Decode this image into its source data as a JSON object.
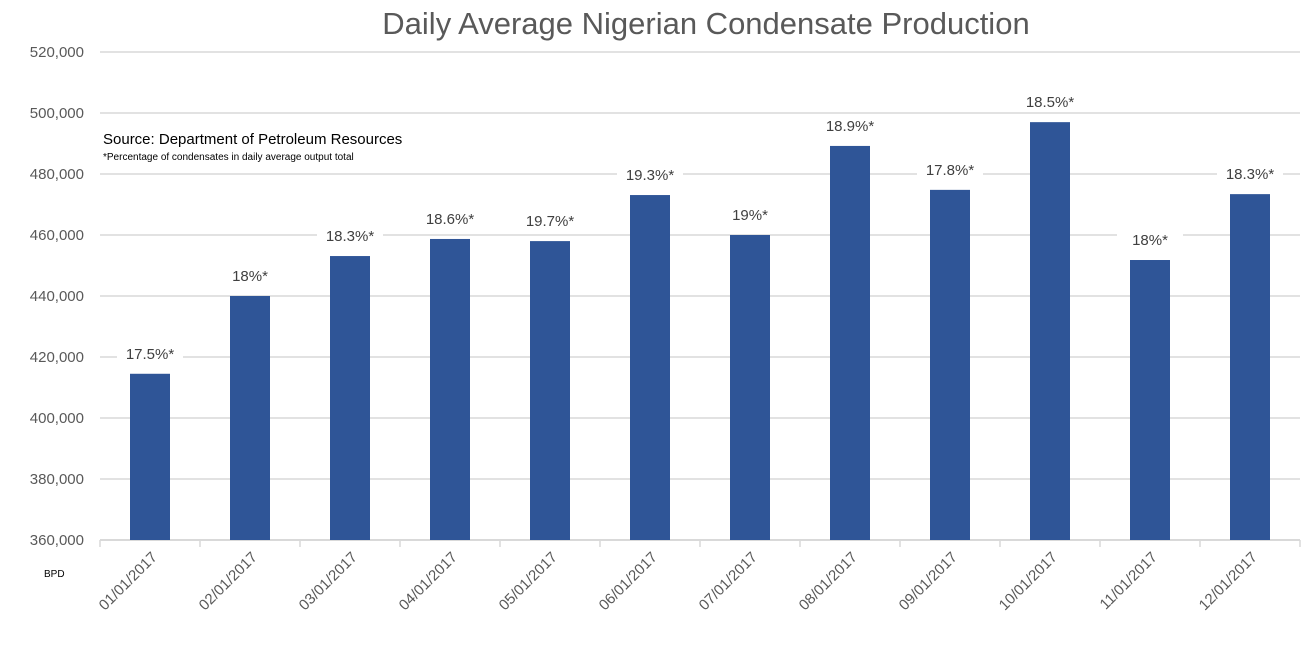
{
  "chart_data": {
    "type": "bar",
    "title": "Daily Average Nigerian Condensate Production",
    "xlabel": "",
    "ylabel": "BPD",
    "ylim": [
      360000,
      520000
    ],
    "yticks": [
      360000,
      380000,
      400000,
      420000,
      440000,
      460000,
      480000,
      500000,
      520000
    ],
    "ytick_labels": [
      "360,000",
      "380,000",
      "400,000",
      "420,000",
      "440,000",
      "460,000",
      "480,000",
      "500,000",
      "520,000"
    ],
    "grid": true,
    "bar_color": "#2F5597",
    "categories": [
      "01/01/2017",
      "02/01/2017",
      "03/01/2017",
      "04/01/2017",
      "05/01/2017",
      "06/01/2017",
      "07/01/2017",
      "08/01/2017",
      "09/01/2017",
      "10/01/2017",
      "11/01/2017",
      "12/01/2017"
    ],
    "values": [
      414500,
      440000,
      453100,
      458700,
      458000,
      473100,
      460000,
      489200,
      474800,
      497000,
      451800,
      473400
    ],
    "data_labels": [
      "17.5%*",
      "18%*",
      "18.3%*",
      "18.6%*",
      "19.7%*",
      "19.3%*",
      "19%*",
      "18.9%*",
      "17.8%*",
      "18.5%*",
      "18%*",
      "18.3%*"
    ],
    "annotations": {
      "source": "Source: Department of Petroleum Resources",
      "footnote": "*Percentage of condensates in daily average output total"
    }
  }
}
